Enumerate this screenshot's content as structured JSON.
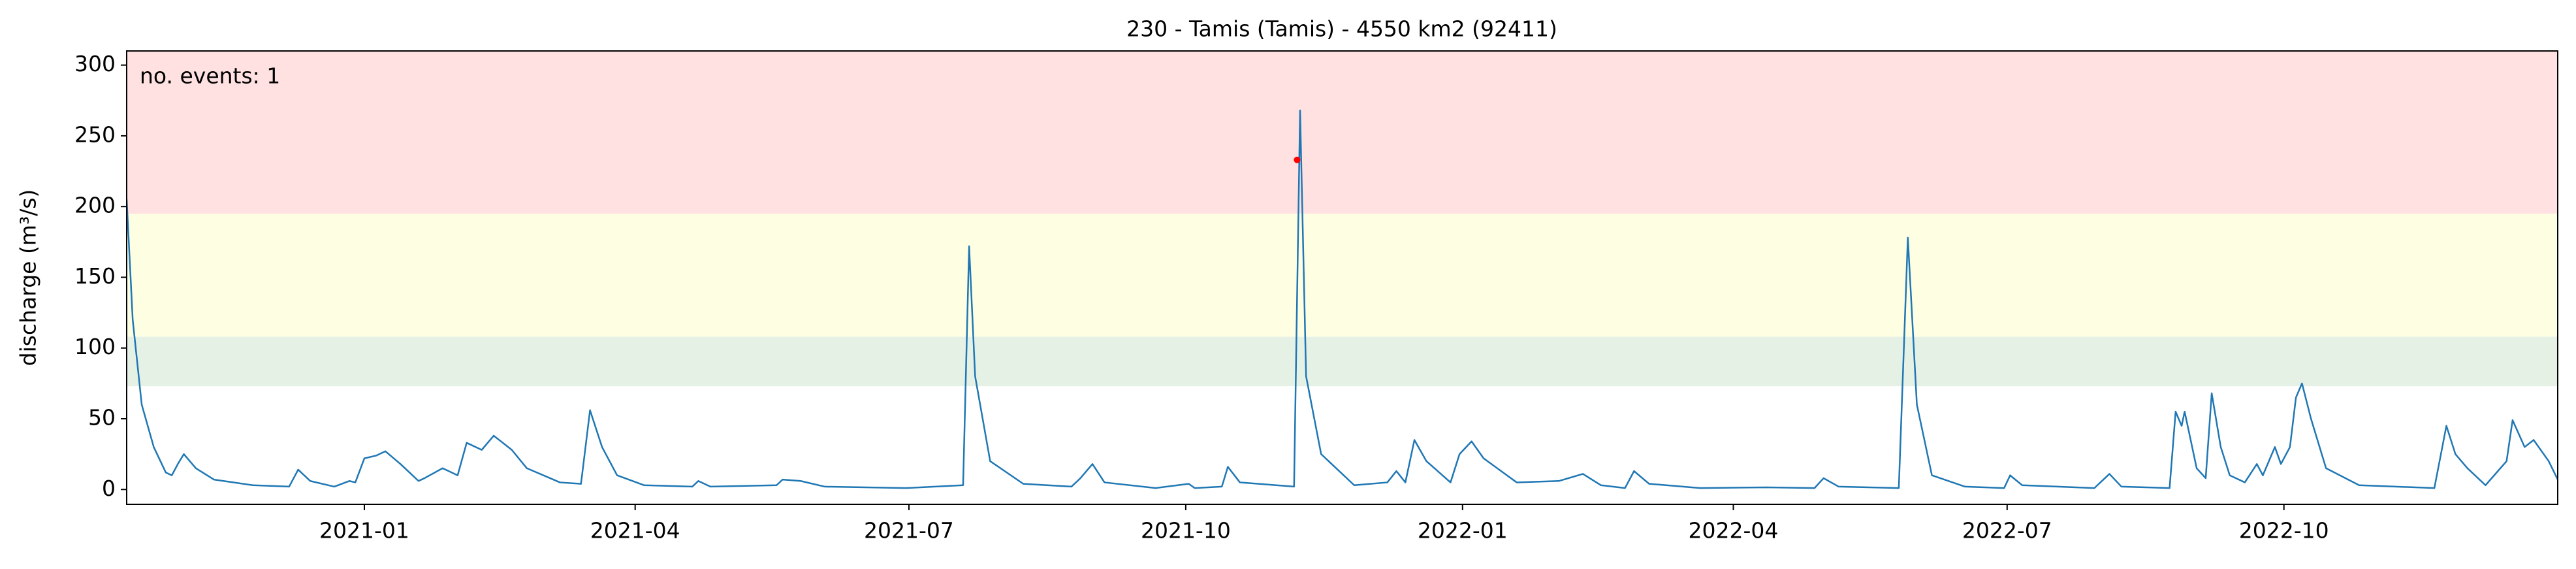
{
  "chart_data": {
    "type": "line",
    "title": "230 - Tamis (Tamis) - 4550 km2 (92411)",
    "y_label": "discharge (m³/s)",
    "annotation": "no. events: 1",
    "annotation_color": "#ff0000",
    "xlim": [
      "2020-10-14",
      "2022-12-31"
    ],
    "xticks": [
      {
        "value": "2021-01-01",
        "label": "2021-01"
      },
      {
        "value": "2021-04-01",
        "label": "2021-04"
      },
      {
        "value": "2021-07-01",
        "label": "2021-07"
      },
      {
        "value": "2021-10-01",
        "label": "2021-10"
      },
      {
        "value": "2022-01-01",
        "label": "2022-01"
      },
      {
        "value": "2022-04-01",
        "label": "2022-04"
      },
      {
        "value": "2022-07-01",
        "label": "2022-07"
      },
      {
        "value": "2022-10-01",
        "label": "2022-10"
      }
    ],
    "ylim": [
      -10.5,
      310
    ],
    "yticks": [
      0,
      50,
      100,
      150,
      200,
      250,
      300
    ],
    "bands": [
      {
        "from": 73,
        "to": 108,
        "color": "#e6f1e6"
      },
      {
        "from": 108,
        "to": 195,
        "color": "#fefee3"
      },
      {
        "from": 195,
        "to": 310,
        "color": "#ffe1e1"
      }
    ],
    "events": {
      "color": "#ff0000",
      "x": [
        "2021-11-07"
      ],
      "values": [
        233
      ]
    },
    "series": [
      {
        "color": "#1f77b4",
        "x": [
          "2020-10-14",
          "2020-10-16",
          "2020-10-19",
          "2020-10-23",
          "2020-10-27",
          "2020-10-29",
          "2020-10-31",
          "2020-11-02",
          "2020-11-06",
          "2020-11-12",
          "2020-11-25",
          "2020-12-07",
          "2020-12-10",
          "2020-12-14",
          "2020-12-22",
          "2020-12-27",
          "2020-12-29",
          "2021-01-01",
          "2021-01-05",
          "2021-01-08",
          "2021-01-13",
          "2021-01-19",
          "2021-01-21",
          "2021-01-27",
          "2021-02-01",
          "2021-02-04",
          "2021-02-09",
          "2021-02-13",
          "2021-02-19",
          "2021-02-24",
          "2021-03-07",
          "2021-03-14",
          "2021-03-17",
          "2021-03-21",
          "2021-03-26",
          "2021-04-04",
          "2021-04-20",
          "2021-04-22",
          "2021-04-26",
          "2021-05-18",
          "2021-05-20",
          "2021-05-26",
          "2021-06-03",
          "2021-06-30",
          "2021-07-19",
          "2021-07-21",
          "2021-07-23",
          "2021-07-28",
          "2021-08-08",
          "2021-08-24",
          "2021-08-27",
          "2021-08-31",
          "2021-09-04",
          "2021-09-21",
          "2021-10-02",
          "2021-10-04",
          "2021-10-13",
          "2021-10-15",
          "2021-10-19",
          "2021-11-06",
          "2021-11-08",
          "2021-11-10",
          "2021-11-15",
          "2021-11-26",
          "2021-12-07",
          "2021-12-10",
          "2021-12-13",
          "2021-12-16",
          "2021-12-20",
          "2021-12-28",
          "2021-12-31",
          "2022-01-04",
          "2022-01-08",
          "2022-01-19",
          "2022-02-02",
          "2022-02-10",
          "2022-02-16",
          "2022-02-24",
          "2022-02-27",
          "2022-03-04",
          "2022-03-21",
          "2022-04-12",
          "2022-04-28",
          "2022-05-01",
          "2022-05-06",
          "2022-05-26",
          "2022-05-29",
          "2022-06-01",
          "2022-06-06",
          "2022-06-17",
          "2022-06-30",
          "2022-07-02",
          "2022-07-06",
          "2022-07-30",
          "2022-08-04",
          "2022-08-08",
          "2022-08-24",
          "2022-08-26",
          "2022-08-28",
          "2022-08-29",
          "2022-09-02",
          "2022-09-05",
          "2022-09-07",
          "2022-09-10",
          "2022-09-13",
          "2022-09-18",
          "2022-09-22",
          "2022-09-24",
          "2022-09-28",
          "2022-09-30",
          "2022-10-03",
          "2022-10-05",
          "2022-10-07",
          "2022-10-10",
          "2022-10-15",
          "2022-10-26",
          "2022-11-20",
          "2022-11-24",
          "2022-11-27",
          "2022-12-01",
          "2022-12-07",
          "2022-12-14",
          "2022-12-16",
          "2022-12-20",
          "2022-12-23",
          "2022-12-28",
          "2022-12-31"
        ],
        "values": [
          205,
          120,
          60,
          30,
          12,
          10,
          18,
          25,
          15,
          7,
          3,
          2,
          14,
          6,
          2,
          6,
          5,
          22,
          24,
          27,
          18,
          6,
          8,
          15,
          10,
          33,
          28,
          38,
          28,
          15,
          5,
          4,
          56,
          30,
          10,
          3,
          2,
          6,
          2,
          3,
          7,
          6,
          2,
          1,
          3,
          172,
          80,
          20,
          4,
          2,
          8,
          18,
          5,
          1,
          4,
          1,
          2,
          16,
          5,
          2,
          268,
          80,
          25,
          3,
          5,
          13,
          5,
          35,
          20,
          5,
          25,
          34,
          22,
          5,
          6,
          11,
          3,
          1,
          13,
          4,
          1,
          1.5,
          1,
          8,
          2,
          1,
          178,
          60,
          10,
          2,
          1,
          10,
          3,
          1,
          11,
          2,
          1,
          55,
          45,
          55,
          15,
          8,
          68,
          30,
          10,
          5,
          18,
          10,
          30,
          18,
          30,
          65,
          75,
          50,
          15,
          3,
          1,
          45,
          25,
          15,
          3,
          20,
          49,
          30,
          35,
          20,
          7
        ]
      }
    ]
  }
}
